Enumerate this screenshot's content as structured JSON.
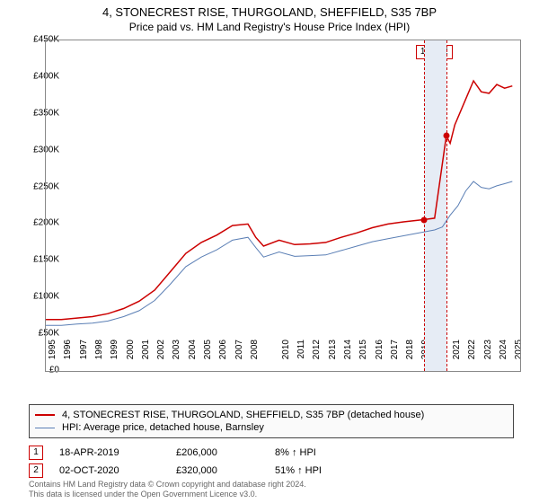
{
  "title_line1": "4, STONECREST RISE, THURGOLAND, SHEFFIELD, S35 7BP",
  "title_line2": "Price paid vs. HM Land Registry's House Price Index (HPI)",
  "chart": {
    "type": "line",
    "background_color": "#ffffff",
    "border_color": "#888888",
    "xlim": [
      1995,
      2025.5
    ],
    "ylim": [
      0,
      450000
    ],
    "ytick_step": 50000,
    "y_labels": [
      "£0",
      "£50K",
      "£100K",
      "£150K",
      "£200K",
      "£250K",
      "£300K",
      "£350K",
      "£400K",
      "£450K"
    ],
    "x_labels": [
      "1995",
      "1996",
      "1997",
      "1998",
      "1999",
      "2000",
      "2001",
      "2002",
      "2003",
      "2004",
      "2005",
      "2006",
      "2007",
      "2008",
      "2010",
      "2011",
      "2012",
      "2013",
      "2014",
      "2015",
      "2016",
      "2017",
      "2018",
      "2019",
      "2020",
      "2021",
      "2022",
      "2023",
      "2024",
      "2025"
    ],
    "series": {
      "property": {
        "color": "#cc0000",
        "width": 1.5,
        "points": [
          [
            1995,
            70000
          ],
          [
            1996,
            70000
          ],
          [
            1997,
            72000
          ],
          [
            1998,
            74000
          ],
          [
            1999,
            78000
          ],
          [
            2000,
            85000
          ],
          [
            2001,
            95000
          ],
          [
            2002,
            110000
          ],
          [
            2003,
            135000
          ],
          [
            2004,
            160000
          ],
          [
            2005,
            175000
          ],
          [
            2006,
            185000
          ],
          [
            2007,
            198000
          ],
          [
            2008,
            200000
          ],
          [
            2008.5,
            182000
          ],
          [
            2009,
            170000
          ],
          [
            2010,
            178000
          ],
          [
            2011,
            172000
          ],
          [
            2012,
            173000
          ],
          [
            2013,
            175000
          ],
          [
            2014,
            182000
          ],
          [
            2015,
            188000
          ],
          [
            2016,
            195000
          ],
          [
            2017,
            200000
          ],
          [
            2018,
            203000
          ],
          [
            2019.3,
            206000
          ],
          [
            2020,
            208000
          ],
          [
            2020.75,
            320000
          ],
          [
            2021,
            310000
          ],
          [
            2021.3,
            335000
          ],
          [
            2022,
            370000
          ],
          [
            2022.5,
            395000
          ],
          [
            2023,
            380000
          ],
          [
            2023.5,
            378000
          ],
          [
            2024,
            390000
          ],
          [
            2024.5,
            385000
          ],
          [
            2025,
            388000
          ]
        ]
      },
      "hpi": {
        "color": "#5b7fb5",
        "width": 1,
        "points": [
          [
            1995,
            62000
          ],
          [
            1996,
            62000
          ],
          [
            1997,
            64000
          ],
          [
            1998,
            65000
          ],
          [
            1999,
            68000
          ],
          [
            2000,
            74000
          ],
          [
            2001,
            82000
          ],
          [
            2002,
            96000
          ],
          [
            2003,
            118000
          ],
          [
            2004,
            142000
          ],
          [
            2005,
            155000
          ],
          [
            2006,
            165000
          ],
          [
            2007,
            178000
          ],
          [
            2008,
            182000
          ],
          [
            2008.5,
            168000
          ],
          [
            2009,
            155000
          ],
          [
            2010,
            162000
          ],
          [
            2011,
            156000
          ],
          [
            2012,
            157000
          ],
          [
            2013,
            158000
          ],
          [
            2014,
            164000
          ],
          [
            2015,
            170000
          ],
          [
            2016,
            176000
          ],
          [
            2017,
            180000
          ],
          [
            2018,
            184000
          ],
          [
            2019,
            188000
          ],
          [
            2020,
            192000
          ],
          [
            2020.5,
            196000
          ],
          [
            2021,
            212000
          ],
          [
            2021.5,
            225000
          ],
          [
            2022,
            245000
          ],
          [
            2022.5,
            258000
          ],
          [
            2023,
            250000
          ],
          [
            2023.5,
            248000
          ],
          [
            2024,
            252000
          ],
          [
            2024.5,
            255000
          ],
          [
            2025,
            258000
          ]
        ]
      }
    },
    "sale_markers": [
      {
        "n": "1",
        "x": 2019.3,
        "y": 206000,
        "color": "#cc0000"
      },
      {
        "n": "2",
        "x": 2020.75,
        "y": 320000,
        "color": "#cc0000"
      }
    ],
    "shade_band": {
      "from": 2019.3,
      "to": 2020.75,
      "color": "#e6ecf5"
    }
  },
  "legend": {
    "prop_label": "4, STONECREST RISE, THURGOLAND, SHEFFIELD, S35 7BP (detached house)",
    "hpi_label": "HPI: Average price, detached house, Barnsley"
  },
  "sales": [
    {
      "n": "1",
      "date": "18-APR-2019",
      "price": "£206,000",
      "pct": "8% ↑ HPI",
      "color": "#cc0000"
    },
    {
      "n": "2",
      "date": "02-OCT-2020",
      "price": "£320,000",
      "pct": "51% ↑ HPI",
      "color": "#cc0000"
    }
  ],
  "license_line1": "Contains HM Land Registry data © Crown copyright and database right 2024.",
  "license_line2": "This data is licensed under the Open Government Licence v3.0."
}
